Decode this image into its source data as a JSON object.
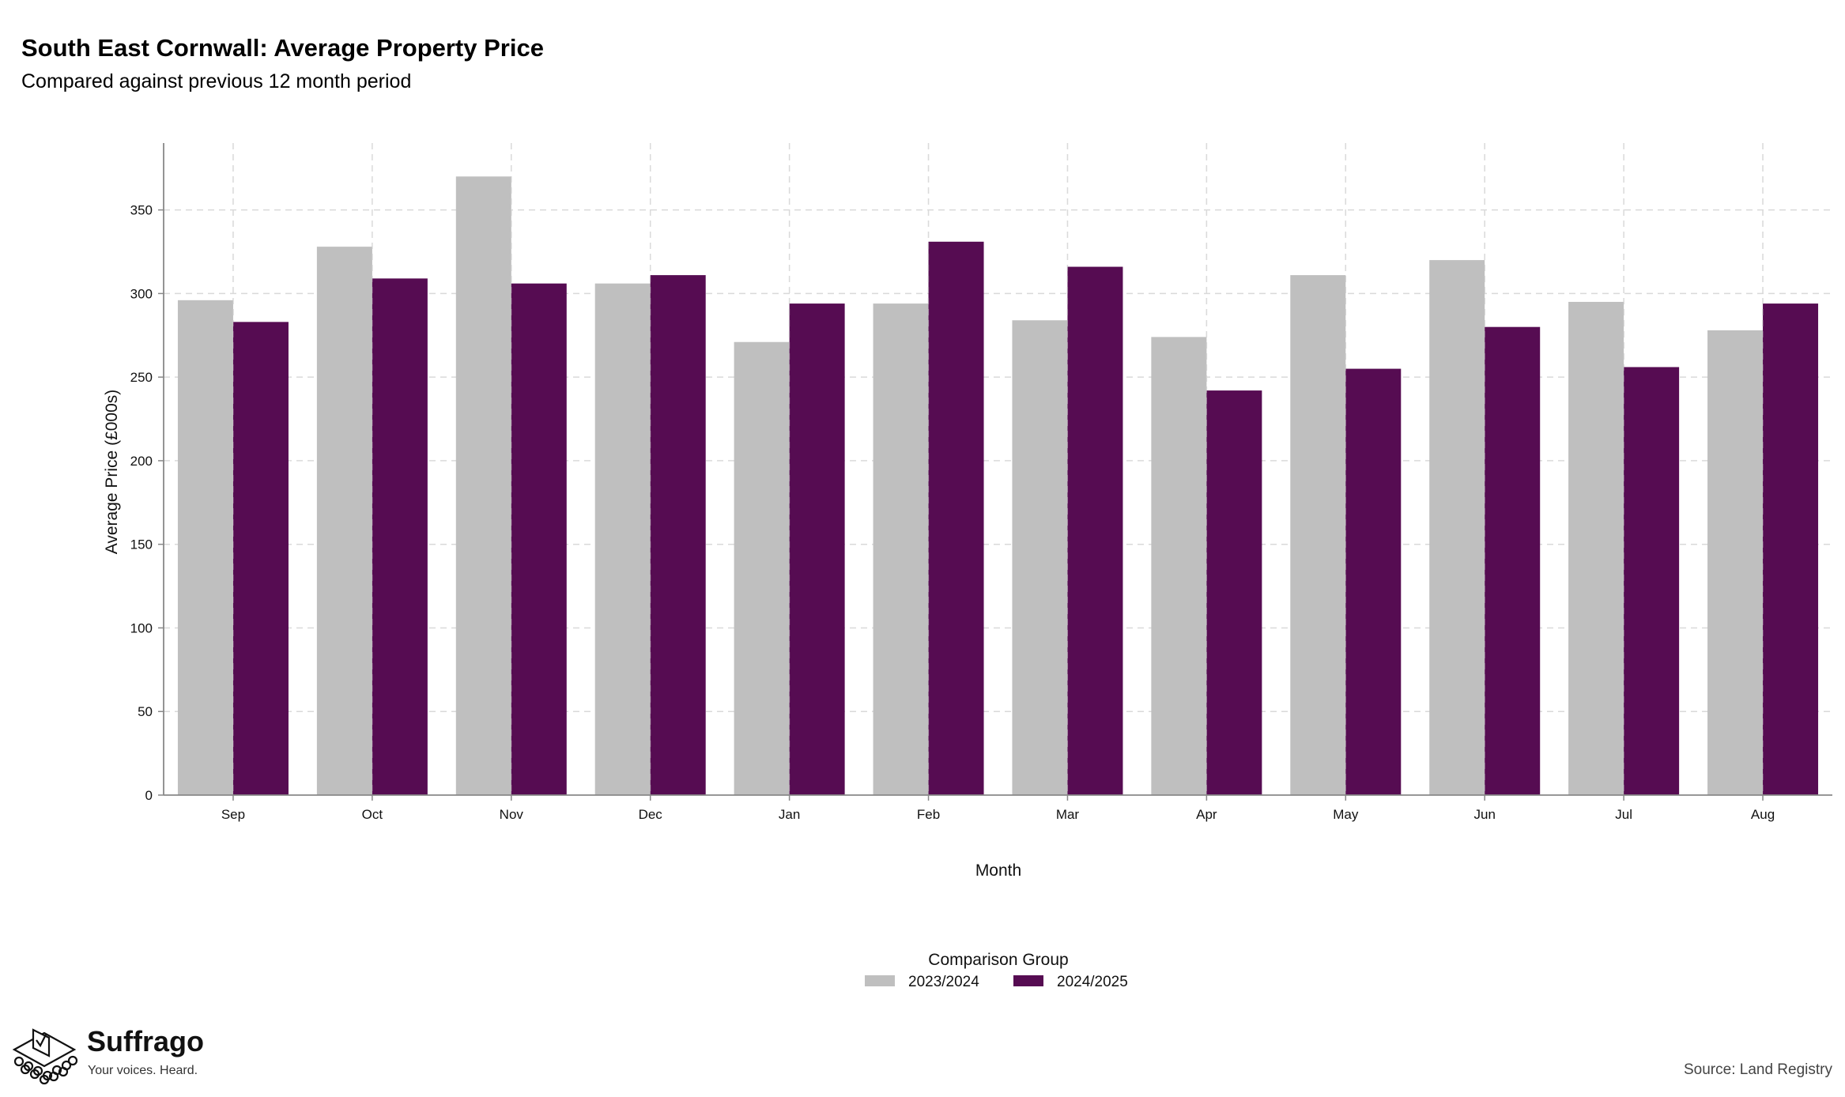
{
  "chart_data": {
    "type": "bar",
    "title": "South East Cornwall: Average Property Price",
    "subtitle": "Compared against previous 12 month period",
    "xlabel": "Month",
    "ylabel": "Average Price (£000s)",
    "ylim": [
      0,
      390
    ],
    "yticks": [
      0,
      50,
      100,
      150,
      200,
      250,
      300,
      350
    ],
    "grid": true,
    "legend_title": "Comparison Group",
    "legend_position": "bottom",
    "categories": [
      "Sep",
      "Oct",
      "Nov",
      "Dec",
      "Jan",
      "Feb",
      "Mar",
      "Apr",
      "May",
      "Jun",
      "Jul",
      "Aug"
    ],
    "series": [
      {
        "name": "2023/2024",
        "color": "#bfbfbf",
        "values": [
          296,
          328,
          370,
          306,
          271,
          294,
          284,
          274,
          311,
          320,
          295,
          278
        ]
      },
      {
        "name": "2024/2025",
        "color": "#560c52",
        "values": [
          283,
          309,
          306,
          311,
          294,
          331,
          316,
          242,
          255,
          280,
          256,
          294
        ]
      }
    ]
  },
  "branding": {
    "name": "Suffrago",
    "tagline": "Your voices. Heard.",
    "logo_icon": "ballot-box-icon"
  },
  "source": "Source: Land Registry"
}
